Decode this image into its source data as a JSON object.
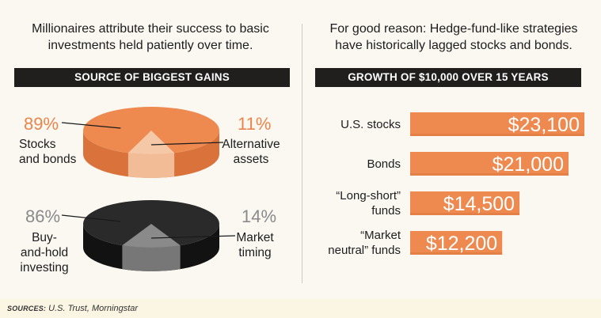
{
  "left": {
    "intro_lines": [
      "Millionaires attribute their success to basic",
      "investments held patiently over time."
    ],
    "banner": "SOURCE OF BIGGEST GAINS"
  },
  "right": {
    "intro_lines": [
      "For good reason: Hedge-fund-like strategies",
      "have historically lagged stocks and bonds."
    ],
    "banner": "GROWTH OF $10,000 OVER 15 YEARS"
  },
  "source": {
    "label": "SOURCES:",
    "text": " U.S. Trust, Morningstar"
  },
  "colors": {
    "orange": "#ee8a50",
    "orange_light": "#f5c9a7",
    "orange_dark": "#d9733b",
    "dark": "#2a2a2a",
    "dark_slice": "#8a8a8a",
    "dark_side": "#121212",
    "pct_orange": "#e9854a",
    "pct_gray": "#8a8a8a",
    "banner": "#201f1e"
  },
  "chart_data": [
    {
      "type": "pie",
      "slices": [
        {
          "label_lines": [
            "Stocks",
            "and bonds"
          ],
          "value_text": "89%",
          "value": 89
        },
        {
          "label_lines": [
            "Alternative",
            "assets"
          ],
          "value_text": "11%",
          "value": 11
        }
      ]
    },
    {
      "type": "pie",
      "slices": [
        {
          "label_lines": [
            "Buy-",
            "and-hold",
            "investing"
          ],
          "value_text": "86%",
          "value": 86
        },
        {
          "label_lines": [
            "Market",
            "timing"
          ],
          "value_text": "14%",
          "value": 14
        }
      ]
    },
    {
      "type": "bar",
      "orientation": "horizontal",
      "categories": [
        [
          "U.S. stocks"
        ],
        [
          "Bonds"
        ],
        [
          "“Long-short”",
          "funds"
        ],
        [
          "“Market",
          "neutral” funds"
        ]
      ],
      "values": [
        23100,
        21000,
        14500,
        12200
      ],
      "value_labels": [
        "$23,100",
        "$21,000",
        "$14,500",
        "$12,200"
      ]
    }
  ]
}
